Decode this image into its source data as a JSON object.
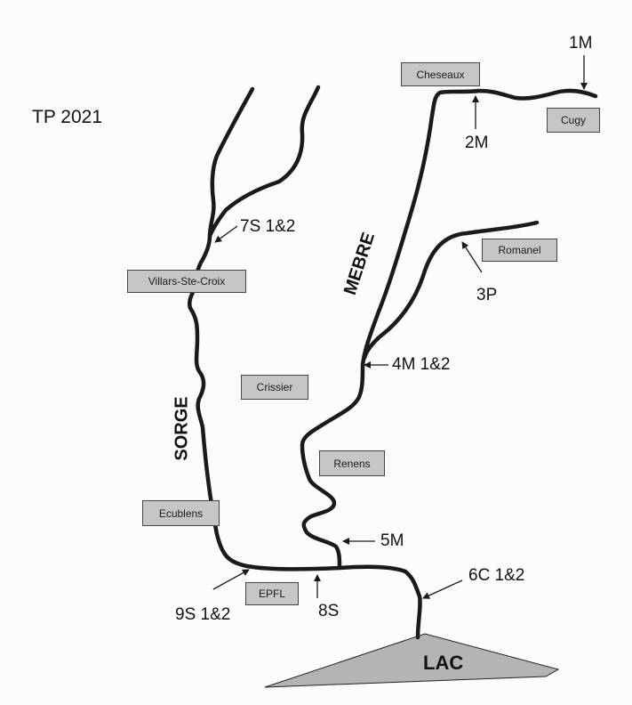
{
  "title": "TP 2021",
  "rivers": {
    "sorge": "SORGE",
    "mebre": "MEBRE"
  },
  "lake": "LAC",
  "places": {
    "cheseaux": "Cheseaux",
    "cugy": "Cugy",
    "romanel": "Romanel",
    "villars": "Villars-Ste-Croix",
    "crissier": "Crissier",
    "renens": "Renens",
    "ecublens": "Ecublens",
    "epfl": "EPFL"
  },
  "sites": {
    "s1m": "1M",
    "s2m": "2M",
    "s3p": "3P",
    "s4m": "4M 1&2",
    "s5m": "5M",
    "s6c": "6C 1&2",
    "s7s": "7S 1&2",
    "s8s": "8S",
    "s9s": "9S 1&2"
  },
  "colors": {
    "box": "#c6c6c6",
    "lake": "#b4b4b4",
    "line": "#1a1a1a"
  }
}
